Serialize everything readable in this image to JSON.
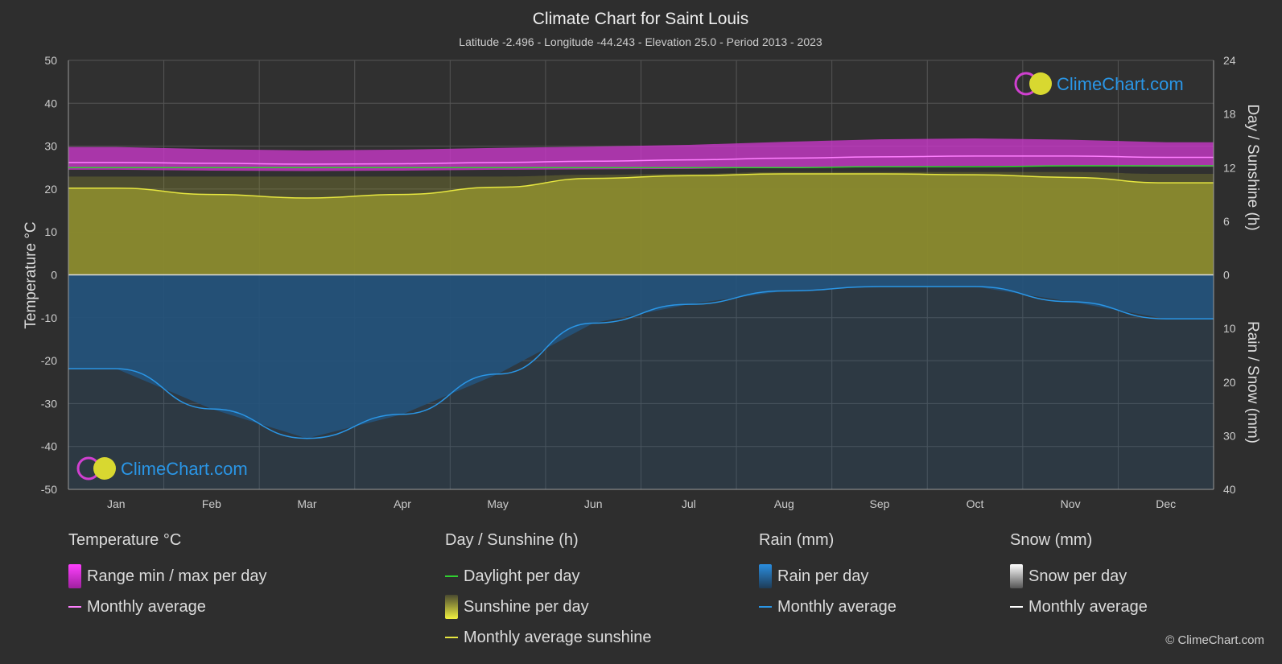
{
  "chart_data": {
    "type": "area",
    "title": "Climate Chart for Saint Louis",
    "subtitle": "Latitude -2.496 - Longitude -44.243 - Elevation 25.0 - Period 2013 - 2023",
    "categories": [
      "Jan",
      "Feb",
      "Mar",
      "Apr",
      "May",
      "Jun",
      "Jul",
      "Aug",
      "Sep",
      "Oct",
      "Nov",
      "Dec"
    ],
    "y_left": {
      "label": "Temperature °C",
      "range": [
        -50,
        50
      ],
      "ticks": [
        50,
        40,
        30,
        20,
        10,
        0,
        -10,
        -20,
        -30,
        -40,
        -50
      ]
    },
    "y_right_top": {
      "label": "Day / Sunshine (h)",
      "range": [
        0,
        24
      ],
      "ticks": [
        24,
        18,
        12,
        6,
        0
      ]
    },
    "y_right_bottom": {
      "label": "Rain / Snow (mm)",
      "range": [
        0,
        40
      ],
      "ticks": [
        0,
        10,
        20,
        30,
        40
      ]
    },
    "grid": true,
    "series": [
      {
        "name": "Range min / max per day",
        "unit": "°C",
        "min": [
          24.5,
          24.3,
          24.2,
          24.3,
          24.5,
          24.6,
          24.7,
          25.0,
          25.3,
          25.4,
          25.4,
          25.2
        ],
        "max": [
          29.8,
          29.3,
          29.0,
          29.2,
          29.6,
          29.9,
          30.3,
          31.0,
          31.6,
          31.8,
          31.5,
          30.9
        ]
      },
      {
        "name": "Monthly average",
        "unit": "°C",
        "values": [
          26.2,
          26.0,
          25.8,
          25.9,
          26.2,
          26.5,
          26.8,
          27.2,
          27.5,
          27.7,
          27.7,
          27.4
        ]
      },
      {
        "name": "Daylight per day",
        "unit": "h",
        "values": [
          12.0,
          12.0,
          12.0,
          12.0,
          12.0,
          12.0,
          12.0,
          12.0,
          12.1,
          12.1,
          12.2,
          12.2
        ]
      },
      {
        "name": "Sunshine per day",
        "unit": "h",
        "values": [
          11.0,
          11.0,
          11.0,
          11.0,
          11.0,
          11.2,
          11.3,
          11.5,
          11.5,
          11.5,
          11.5,
          11.3
        ]
      },
      {
        "name": "Monthly average sunshine",
        "unit": "h",
        "values": [
          9.7,
          9.0,
          8.6,
          9.0,
          9.8,
          10.8,
          11.1,
          11.3,
          11.3,
          11.2,
          10.9,
          10.3
        ]
      },
      {
        "name": "Rain per day",
        "unit": "mm",
        "values": [
          17.5,
          25.0,
          30.5,
          26.0,
          18.5,
          9.0,
          5.5,
          3.0,
          2.2,
          2.2,
          5.0,
          8.2
        ]
      },
      {
        "name": "Monthly average",
        "unit": "mm",
        "values": [
          17.5,
          25.0,
          30.5,
          26.0,
          18.5,
          9.0,
          5.5,
          3.0,
          2.2,
          2.2,
          5.0,
          8.2
        ]
      }
    ]
  },
  "logo": {
    "text": "ClimeChart.com"
  },
  "legend": {
    "temperature": {
      "header": "Temperature °C",
      "items": [
        "Range min / max per day",
        "Monthly average"
      ]
    },
    "sunshine": {
      "header": "Day / Sunshine (h)",
      "items": [
        "Daylight per day",
        "Sunshine per day",
        "Monthly average sunshine"
      ]
    },
    "rain": {
      "header": "Rain (mm)",
      "items": [
        "Rain per day",
        "Monthly average"
      ]
    },
    "snow": {
      "header": "Snow (mm)",
      "items": [
        "Snow per day",
        "Monthly average"
      ]
    }
  },
  "colors": {
    "temp_range": "#c838c8",
    "temp_avg": "#ff80ff",
    "daylight": "#30d030",
    "sunshine_fill": "#8a8a2e",
    "sunshine_avg": "#e6e640",
    "rain_fill": "#23537c",
    "rain_avg": "#2a96e6",
    "snow": "#ffffff"
  },
  "copyright": "© ClimeChart.com"
}
